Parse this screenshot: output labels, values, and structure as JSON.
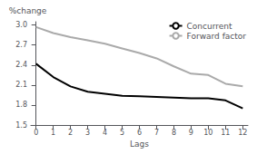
{
  "chart_data": {
    "type": "line",
    "x": [
      0,
      1,
      2,
      3,
      4,
      5,
      6,
      7,
      8,
      9,
      10,
      11,
      12
    ],
    "series": [
      {
        "name": "Concurrent",
        "color": "#000000",
        "values": [
          2.42,
          2.22,
          2.08,
          2.0,
          1.97,
          1.94,
          1.93,
          1.92,
          1.91,
          1.9,
          1.9,
          1.87,
          1.75
        ]
      },
      {
        "name": "Forward factor",
        "color": "#aaaaaa",
        "values": [
          2.97,
          2.88,
          2.82,
          2.77,
          2.72,
          2.65,
          2.58,
          2.5,
          2.38,
          2.27,
          2.25,
          2.12,
          2.08
        ]
      }
    ],
    "xlabel": "Lags",
    "ylabel": "%change",
    "xlim": [
      -0.3,
      12.3
    ],
    "xticks": [
      0,
      1,
      2,
      3,
      4,
      5,
      6,
      7,
      8,
      9,
      10,
      11,
      12
    ],
    "ylim": [
      1.5,
      3.05
    ],
    "yticks": [
      1.5,
      1.8,
      2.1,
      2.4,
      2.7,
      {
        "value": 3.0,
        "label": "3.0"
      }
    ],
    "legend": "upper right",
    "grid": false
  }
}
